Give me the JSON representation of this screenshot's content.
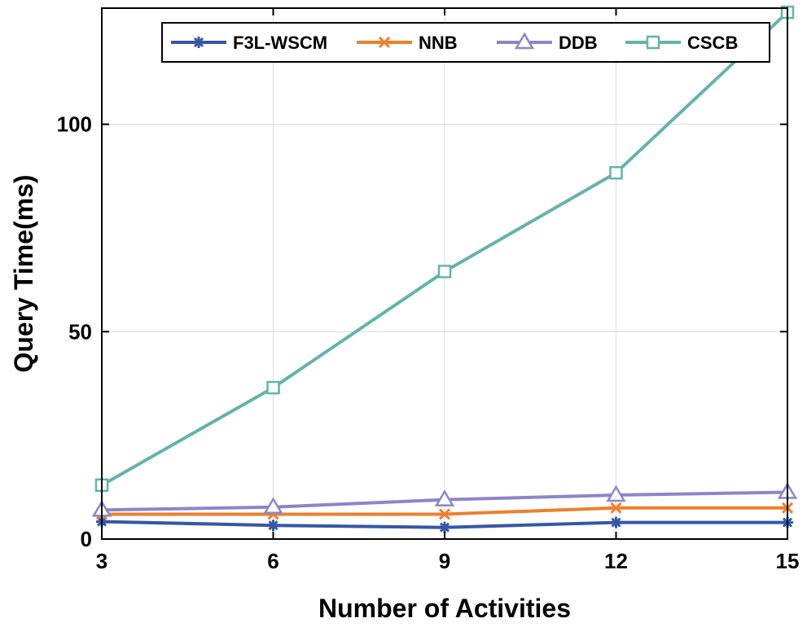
{
  "chart_data": {
    "type": "line",
    "xlabel": "Number of Activities",
    "ylabel": "Query Time(ms)",
    "x": [
      3,
      6,
      9,
      12,
      15
    ],
    "xlim": [
      3,
      15
    ],
    "ylim": [
      0,
      128
    ],
    "xticks": [
      3,
      6,
      9,
      12,
      15
    ],
    "yticks": [
      0,
      50,
      100
    ],
    "grid": true,
    "legend_position": "top",
    "series": [
      {
        "name": "F3L-WSCM",
        "values": [
          4.2,
          3.3,
          2.8,
          4.0,
          4.0
        ],
        "color": "#3557a7",
        "marker": "asterisk"
      },
      {
        "name": "NNB",
        "values": [
          6.0,
          6.0,
          6.0,
          7.5,
          7.5
        ],
        "color": "#ee7f2d",
        "marker": "cross"
      },
      {
        "name": "DDB",
        "values": [
          7.0,
          7.7,
          9.5,
          10.6,
          11.3
        ],
        "color": "#8b86c8",
        "marker": "triangle"
      },
      {
        "name": "CSCB",
        "values": [
          13.0,
          36.5,
          64.5,
          88.3,
          127.0
        ],
        "color": "#64b3ac",
        "marker": "square"
      }
    ]
  }
}
